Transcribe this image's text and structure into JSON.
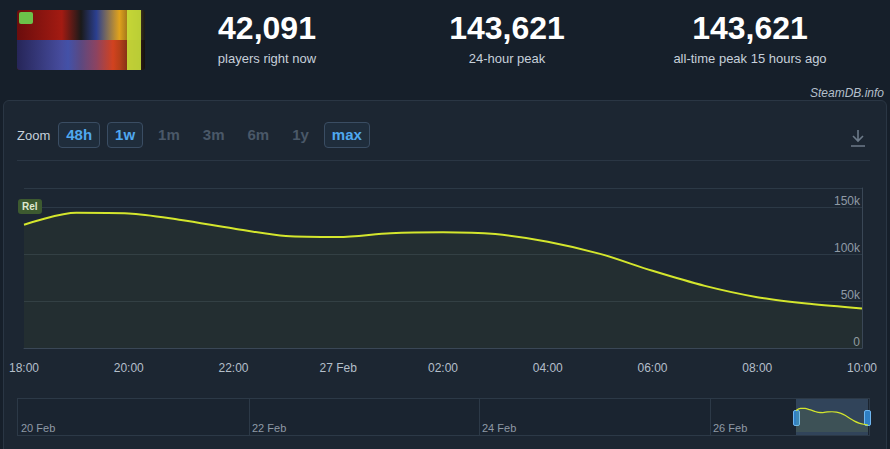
{
  "header": {
    "stats": [
      {
        "value": "42,091",
        "label": "players right now"
      },
      {
        "value": "143,621",
        "label": "24-hour peak"
      },
      {
        "value": "143,621",
        "label": "all-time peak 15 hours ago"
      }
    ]
  },
  "watermark": "SteamDB.info",
  "zoom": {
    "label": "Zoom",
    "buttons": [
      {
        "text": "48h",
        "active": true
      },
      {
        "text": "1w",
        "active": true
      },
      {
        "text": "1m",
        "active": false
      },
      {
        "text": "3m",
        "active": false
      },
      {
        "text": "6m",
        "active": false
      },
      {
        "text": "1y",
        "active": false
      },
      {
        "text": "max",
        "active": true
      }
    ]
  },
  "navigator": {
    "labels": [
      "20 Feb",
      "22 Feb",
      "24 Feb",
      "26 Feb"
    ]
  },
  "chart_data": {
    "type": "area",
    "annotations": [
      "Rel"
    ],
    "categories": [
      "18:00",
      null,
      "20:00",
      null,
      "22:00",
      null,
      "27 Feb",
      null,
      "02:00",
      null,
      "04:00",
      null,
      "06:00",
      null,
      "08:00",
      null,
      "10:00"
    ],
    "values": [
      131000,
      143621,
      143000,
      136000,
      127000,
      119000,
      118000,
      122000,
      123000,
      121000,
      113000,
      100000,
      82000,
      66000,
      54000,
      47000,
      42091
    ],
    "color": "#d4e62d",
    "ylim": [
      0,
      170000
    ],
    "yticks": [
      0,
      {
        "value": 50000,
        "label": "50k"
      },
      {
        "value": 100000,
        "label": "100k"
      },
      {
        "value": 150000,
        "label": "150k"
      }
    ],
    "grid": true
  }
}
